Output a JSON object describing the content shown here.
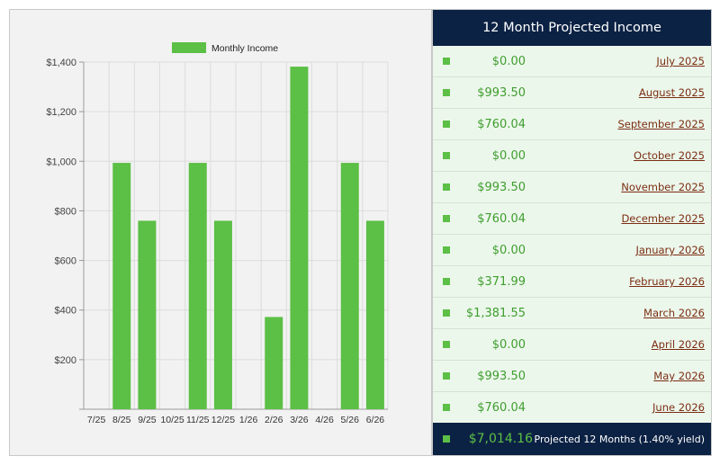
{
  "chart_data": {
    "type": "bar",
    "categories": [
      "7/25",
      "8/25",
      "9/25",
      "10/25",
      "11/25",
      "12/25",
      "1/26",
      "2/26",
      "3/26",
      "4/26",
      "5/26",
      "6/26"
    ],
    "series": [
      {
        "name": "Monthly Income",
        "values": [
          0,
          993.5,
          760.04,
          0,
          993.5,
          760.04,
          0,
          371.99,
          1381.55,
          0,
          993.5,
          760.04
        ]
      }
    ],
    "y_ticks": [
      "$200",
      "$400",
      "$600",
      "$800",
      "$1,000",
      "$1,200",
      "$1,400"
    ],
    "ylim": [
      0,
      1400
    ],
    "grid": true,
    "legend_position": "top-center",
    "bar_color": "#5cbf46"
  },
  "table": {
    "title": "12 Month Projected Income",
    "rows": [
      {
        "amount": "$0.00",
        "month": "July 2025"
      },
      {
        "amount": "$993.50",
        "month": "August 2025"
      },
      {
        "amount": "$760.04",
        "month": "September 2025"
      },
      {
        "amount": "$0.00",
        "month": "October 2025"
      },
      {
        "amount": "$993.50",
        "month": "November 2025"
      },
      {
        "amount": "$760.04",
        "month": "December 2025"
      },
      {
        "amount": "$0.00",
        "month": "January 2026"
      },
      {
        "amount": "$371.99",
        "month": "February 2026"
      },
      {
        "amount": "$1,381.55",
        "month": "March 2026"
      },
      {
        "amount": "$0.00",
        "month": "April 2026"
      },
      {
        "amount": "$993.50",
        "month": "May 2026"
      },
      {
        "amount": "$760.04",
        "month": "June 2026"
      }
    ],
    "footer": {
      "total": "$7,014.16",
      "label": "Projected 12 Months (1.40% yield)"
    }
  },
  "colors": {
    "header_bg": "#0c2244",
    "accent_green": "#5cbf46",
    "amount_text": "#3f9e2e",
    "month_link": "#7b2e12",
    "table_bg": "#ecf7ec"
  }
}
